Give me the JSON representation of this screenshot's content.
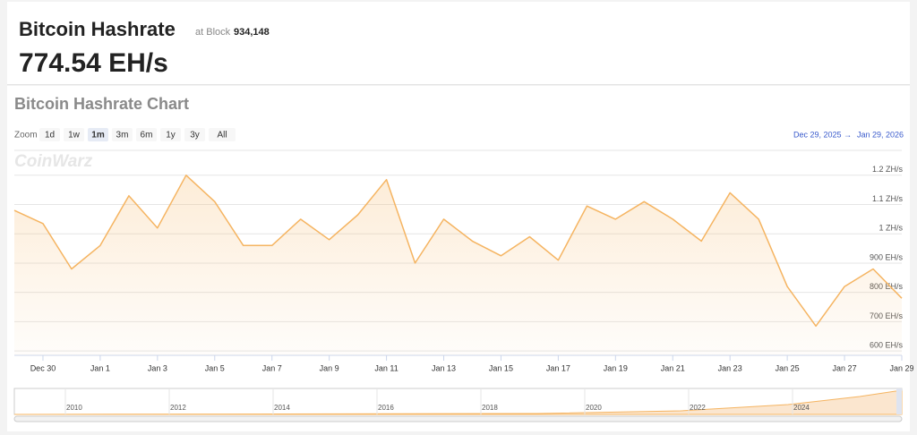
{
  "header": {
    "title": "Bitcoin Hashrate",
    "block_prefix": "at Block",
    "block": "934,148",
    "current": "774.54 EH/s"
  },
  "chart_data": {
    "type": "line",
    "title": "Bitcoin Hashrate Chart",
    "watermark": "CoinWarz",
    "zoom": {
      "label": "Zoom",
      "buttons": [
        "1d",
        "1w",
        "1m",
        "3m",
        "6m",
        "1y",
        "3y",
        "All"
      ],
      "active": "1m"
    },
    "range": {
      "from": "Dec 29, 2025",
      "arrow": "→",
      "to": "Jan 29, 2026"
    },
    "x": [
      "2025-12-29",
      "2025-12-30",
      "2025-12-31",
      "2026-01-01",
      "2026-01-02",
      "2026-01-03",
      "2026-01-04",
      "2026-01-05",
      "2026-01-06",
      "2026-01-07",
      "2026-01-08",
      "2026-01-09",
      "2026-01-10",
      "2026-01-11",
      "2026-01-12",
      "2026-01-13",
      "2026-01-14",
      "2026-01-15",
      "2026-01-16",
      "2026-01-17",
      "2026-01-18",
      "2026-01-19",
      "2026-01-20",
      "2026-01-21",
      "2026-01-22",
      "2026-01-23",
      "2026-01-24",
      "2026-01-25",
      "2026-01-26",
      "2026-01-27",
      "2026-01-28",
      "2026-01-29"
    ],
    "series": [
      {
        "name": "Hashrate",
        "color": "#f5b461",
        "values": [
          1080,
          1035,
          880,
          960,
          1130,
          1020,
          1200,
          1110,
          960,
          960,
          1050,
          980,
          1065,
          1185,
          900,
          1050,
          975,
          925,
          990,
          910,
          1095,
          1050,
          1110,
          1050,
          975,
          1140,
          1050,
          820,
          685,
          820,
          880,
          780
        ]
      }
    ],
    "xlim": [
      "2025-12-29",
      "2026-01-29"
    ],
    "xticks": [
      {
        "value": "2025-12-30",
        "label": "Dec 30"
      },
      {
        "value": "2026-01-01",
        "label": "Jan 1"
      },
      {
        "value": "2026-01-03",
        "label": "Jan 3"
      },
      {
        "value": "2026-01-05",
        "label": "Jan 5"
      },
      {
        "value": "2026-01-07",
        "label": "Jan 7"
      },
      {
        "value": "2026-01-09",
        "label": "Jan 9"
      },
      {
        "value": "2026-01-11",
        "label": "Jan 11"
      },
      {
        "value": "2026-01-13",
        "label": "Jan 13"
      },
      {
        "value": "2026-01-15",
        "label": "Jan 15"
      },
      {
        "value": "2026-01-17",
        "label": "Jan 17"
      },
      {
        "value": "2026-01-19",
        "label": "Jan 19"
      },
      {
        "value": "2026-01-21",
        "label": "Jan 21"
      },
      {
        "value": "2026-01-23",
        "label": "Jan 23"
      },
      {
        "value": "2026-01-25",
        "label": "Jan 25"
      },
      {
        "value": "2026-01-27",
        "label": "Jan 27"
      },
      {
        "value": "2026-01-29",
        "label": "Jan 29"
      }
    ],
    "ylim": [
      585,
      1285
    ],
    "yticks": [
      {
        "value": 600,
        "label": "600 EH/s"
      },
      {
        "value": 700,
        "label": "700 EH/s"
      },
      {
        "value": 800,
        "label": "800 EH/s"
      },
      {
        "value": 900,
        "label": "900 EH/s"
      },
      {
        "value": 1000,
        "label": "1 ZH/s"
      },
      {
        "value": 1100,
        "label": "1.1 ZH/s"
      },
      {
        "value": 1200,
        "label": "1.2 ZH/s"
      }
    ],
    "grid": true,
    "navigator_years": [
      "2010",
      "2012",
      "2014",
      "2016",
      "2018",
      "2020",
      "2022",
      "2024"
    ]
  }
}
